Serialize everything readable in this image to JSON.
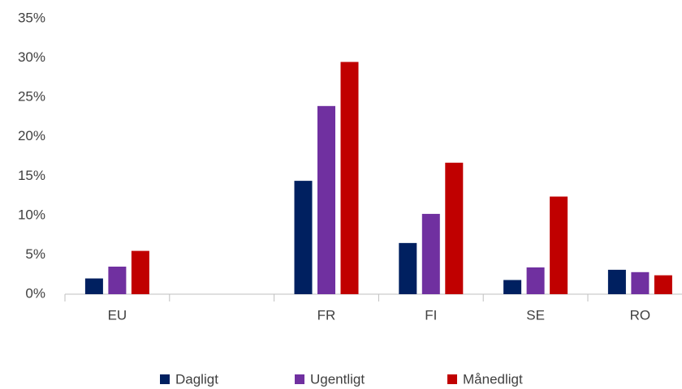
{
  "chart_data": {
    "type": "bar",
    "categories": [
      "EU",
      null,
      "FR",
      "FI",
      "SE",
      "RO"
    ],
    "series": [
      {
        "name": "Dagligt",
        "color": "#002060",
        "values": [
          2.0,
          null,
          14.4,
          6.5,
          1.8,
          3.1
        ]
      },
      {
        "name": "Ugentligt",
        "color": "#7030a0",
        "values": [
          3.5,
          null,
          23.9,
          10.2,
          3.4,
          2.8
        ]
      },
      {
        "name": "Månedligt",
        "color": "#c00000",
        "values": [
          5.5,
          null,
          29.5,
          16.7,
          12.4,
          2.4
        ]
      }
    ],
    "ylim": [
      0,
      35
    ],
    "yticks": [
      {
        "value": 0,
        "label": "0%"
      },
      {
        "value": 5,
        "label": "5%"
      },
      {
        "value": 10,
        "label": "10%"
      },
      {
        "value": 15,
        "label": "15%"
      },
      {
        "value": 20,
        "label": "20%"
      },
      {
        "value": 25,
        "label": "25%"
      },
      {
        "value": 30,
        "label": "30%"
      },
      {
        "value": 35,
        "label": "35%"
      }
    ],
    "grid": false,
    "legend": "bottom"
  }
}
